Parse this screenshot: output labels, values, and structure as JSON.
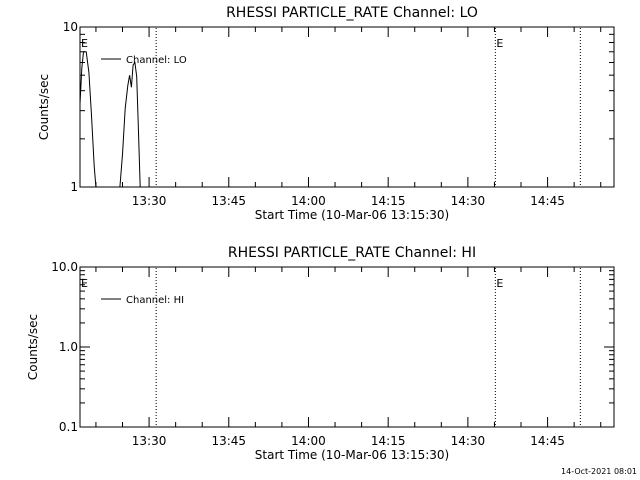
{
  "chart_data": [
    {
      "type": "line",
      "title": "RHESSI PARTICLE_RATE Channel: LO",
      "xlabel": "Start Time (10-Mar-06 13:15:30)",
      "ylabel": "Counts/sec",
      "yscale": "log",
      "ylim": [
        1,
        10
      ],
      "xlim": [
        "13:17:00",
        "14:57:30"
      ],
      "y_ticks": [
        {
          "value": 1,
          "label": "1"
        },
        {
          "value": 10,
          "label": "10"
        }
      ],
      "x_ticks": [
        {
          "value": "13:30",
          "label": "13:30"
        },
        {
          "value": "13:45",
          "label": "13:45"
        },
        {
          "value": "14:00",
          "label": "14:00"
        },
        {
          "value": "14:15",
          "label": "14:15"
        },
        {
          "value": "14:30",
          "label": "14:30"
        },
        {
          "value": "14:45",
          "label": "14:45"
        }
      ],
      "legend": {
        "label": "Channel: LO",
        "position": "top-left"
      },
      "series": [
        {
          "name": "Channel: LO",
          "segments": [
            [
              [
                "13:17:00",
                3.3
              ],
              [
                "13:17:20",
                5.5
              ],
              [
                "13:17:40",
                7.0
              ],
              [
                "13:18:10",
                7.0
              ],
              [
                "13:18:40",
                5.2
              ],
              [
                "13:19:10",
                2.8
              ],
              [
                "13:19:40",
                1.35
              ],
              [
                "13:20:00",
                1.0
              ]
            ],
            [
              [
                "13:24:30",
                1.0
              ],
              [
                "13:25:00",
                1.6
              ],
              [
                "13:25:30",
                3.1
              ],
              [
                "13:26:00",
                4.3
              ],
              [
                "13:26:20",
                5.0
              ],
              [
                "13:26:40",
                4.2
              ],
              [
                "13:27:00",
                5.8
              ],
              [
                "13:27:20",
                6.0
              ],
              [
                "13:27:40",
                4.9
              ],
              [
                "13:28:00",
                2.3
              ],
              [
                "13:28:20",
                1.0
              ]
            ]
          ]
        }
      ],
      "event_lines": [
        {
          "time": "13:31:20",
          "label": ""
        },
        {
          "time": "14:35:10",
          "label": "E"
        },
        {
          "time": "14:51:10",
          "label": ""
        }
      ],
      "start_marker": {
        "time": "13:17:00",
        "label": "E"
      }
    },
    {
      "type": "line",
      "title": "RHESSI PARTICLE_RATE Channel: HI",
      "xlabel": "Start Time (10-Mar-06 13:15:30)",
      "ylabel": "Counts/sec",
      "yscale": "log",
      "ylim": [
        0.1,
        10
      ],
      "xlim": [
        "13:17:00",
        "14:57:30"
      ],
      "y_ticks": [
        {
          "value": 0.1,
          "label": "0.1"
        },
        {
          "value": 1,
          "label": "1.0"
        },
        {
          "value": 10,
          "label": "10.0"
        }
      ],
      "x_ticks": [
        {
          "value": "13:30",
          "label": "13:30"
        },
        {
          "value": "13:45",
          "label": "13:45"
        },
        {
          "value": "14:00",
          "label": "14:00"
        },
        {
          "value": "14:15",
          "label": "14:15"
        },
        {
          "value": "14:30",
          "label": "14:30"
        },
        {
          "value": "14:45",
          "label": "14:45"
        }
      ],
      "legend": {
        "label": "Channel: HI",
        "position": "top-left"
      },
      "series": [
        {
          "name": "Channel: HI",
          "segments": []
        }
      ],
      "event_lines": [
        {
          "time": "13:31:20",
          "label": ""
        },
        {
          "time": "14:35:10",
          "label": "E"
        },
        {
          "time": "14:51:10",
          "label": ""
        }
      ],
      "start_marker": {
        "time": "13:17:00",
        "label": "E"
      }
    }
  ],
  "footer": {
    "timestamp": "14-Oct-2021 08:01"
  }
}
